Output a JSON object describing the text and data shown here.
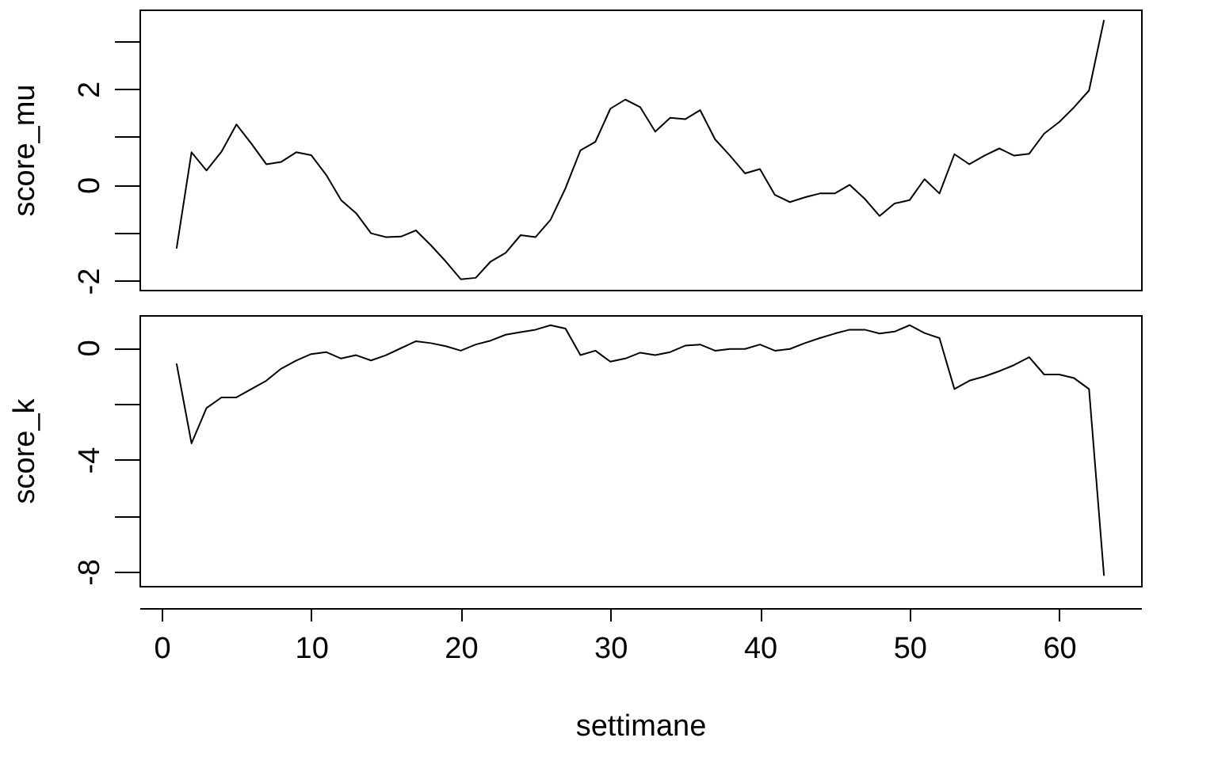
{
  "chart_data": [
    {
      "type": "line",
      "ylabel": "score_mu",
      "x": [
        1,
        2,
        3,
        4,
        5,
        6,
        7,
        8,
        9,
        10,
        11,
        12,
        13,
        14,
        15,
        16,
        17,
        18,
        19,
        20,
        21,
        22,
        23,
        24,
        25,
        26,
        27,
        28,
        29,
        30,
        31,
        32,
        33,
        34,
        35,
        36,
        37,
        38,
        39,
        40,
        41,
        42,
        43,
        44,
        45,
        46,
        47,
        48,
        49,
        50,
        51,
        52,
        53,
        54,
        55,
        56,
        57,
        58,
        59,
        60,
        61,
        62,
        63
      ],
      "series": [
        {
          "color": "#000000",
          "values": [
            -1.33,
            0.68,
            0.3,
            0.69,
            1.26,
            0.86,
            0.43,
            0.48,
            0.68,
            0.62,
            0.21,
            -0.32,
            -0.59,
            -1.01,
            -1.09,
            -1.08,
            -0.95,
            -1.26,
            -1.6,
            -1.97,
            -1.94,
            -1.6,
            -1.42,
            -1.05,
            -1.09,
            -0.73,
            -0.07,
            0.72,
            0.9,
            1.59,
            1.78,
            1.62,
            1.11,
            1.4,
            1.37,
            1.56,
            0.95,
            0.61,
            0.24,
            0.33,
            -0.21,
            -0.36,
            -0.26,
            -0.18,
            -0.18,
            0.0,
            -0.29,
            -0.65,
            -0.39,
            -0.32,
            0.12,
            -0.18,
            0.64,
            0.43,
            0.61,
            0.76,
            0.61,
            0.65,
            1.07,
            1.31,
            1.62,
            1.97,
            3.44
          ]
        }
      ],
      "xlim": [
        -1.48,
        65.48
      ],
      "xticks": [
        0,
        10,
        20,
        30,
        40,
        50,
        60
      ],
      "ylim": [
        -2.19,
        3.66
      ],
      "yticks": [
        -2,
        {
          "value": -1,
          "label": null
        },
        0,
        {
          "value": 1,
          "label": null
        },
        2,
        {
          "value": 3,
          "label": null
        }
      ],
      "tick_labels": "y",
      "grid": false,
      "marker": "none",
      "line_style": "solid"
    },
    {
      "type": "line",
      "ylabel": "score_k",
      "xlabel": "settimane",
      "x": [
        1,
        2,
        3,
        4,
        5,
        6,
        7,
        8,
        9,
        10,
        11,
        12,
        13,
        14,
        15,
        16,
        17,
        18,
        19,
        20,
        21,
        22,
        23,
        24,
        25,
        26,
        27,
        28,
        29,
        30,
        31,
        32,
        33,
        34,
        35,
        36,
        37,
        38,
        39,
        40,
        41,
        42,
        43,
        44,
        45,
        46,
        47,
        48,
        49,
        50,
        51,
        52,
        53,
        54,
        55,
        56,
        57,
        58,
        59,
        60,
        61,
        62,
        63
      ],
      "series": [
        {
          "color": "#000000",
          "values": [
            -0.57,
            -3.42,
            -2.16,
            -1.78,
            -1.78,
            -1.48,
            -1.18,
            -0.75,
            -0.46,
            -0.23,
            -0.16,
            -0.39,
            -0.27,
            -0.46,
            -0.27,
            -0.02,
            0.23,
            0.16,
            0.05,
            -0.11,
            0.11,
            0.25,
            0.46,
            0.55,
            0.64,
            0.8,
            0.68,
            -0.27,
            -0.11,
            -0.5,
            -0.39,
            -0.18,
            -0.27,
            -0.16,
            0.07,
            0.11,
            -0.11,
            -0.05,
            -0.05,
            0.11,
            -0.11,
            -0.05,
            0.16,
            0.34,
            0.5,
            0.64,
            0.64,
            0.5,
            0.57,
            0.8,
            0.52,
            0.34,
            -1.48,
            -1.18,
            -1.03,
            -0.84,
            -0.62,
            -0.34,
            -0.96,
            -0.96,
            -1.09,
            -1.48,
            -8.15
          ]
        }
      ],
      "xlim": [
        -1.48,
        65.48
      ],
      "xticks": [
        0,
        10,
        20,
        30,
        40,
        50,
        60
      ],
      "ylim": [
        -8.51,
        1.16
      ],
      "yticks": [
        0,
        {
          "value": -2,
          "label": null
        },
        -4,
        {
          "value": -6,
          "label": null
        },
        -8
      ],
      "grid": false,
      "marker": "none",
      "line_style": "solid"
    }
  ]
}
